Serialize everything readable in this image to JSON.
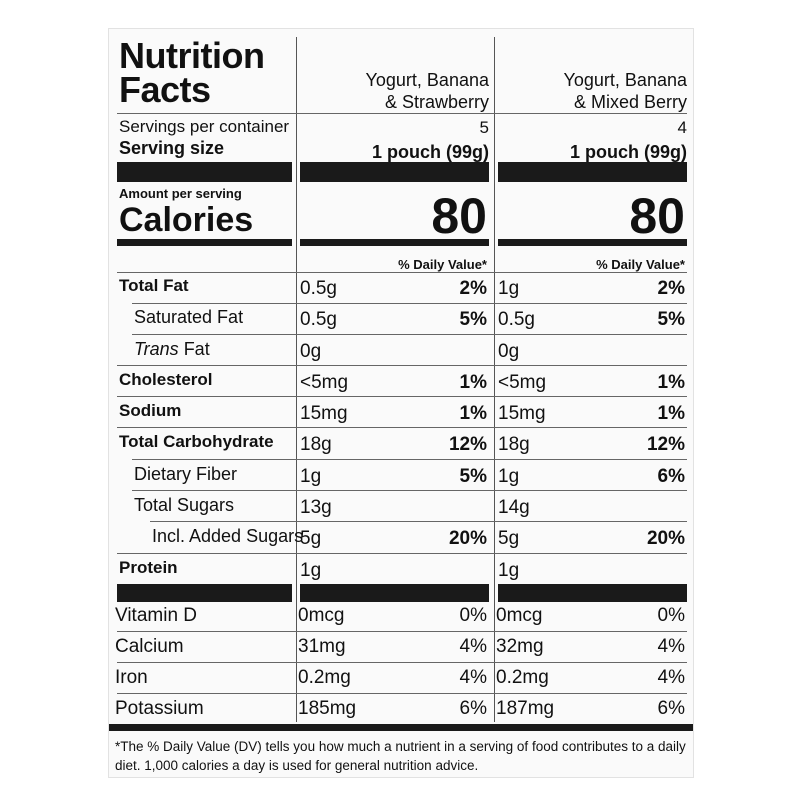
{
  "title_line1": "Nutrition",
  "title_line2": "Facts",
  "columns": [
    {
      "flavor_line1": "Yogurt, Banana",
      "flavor_line2": "& Strawberry",
      "servings": "5",
      "serving_size": "1 pouch (99g)",
      "calories": "80",
      "dv_header": "% Daily Value*",
      "rows": [
        {
          "amount": "0.5g",
          "dv": "2%"
        },
        {
          "amount": "0.5g",
          "dv": "5%"
        },
        {
          "amount": "0g",
          "dv": ""
        },
        {
          "amount": "<5mg",
          "dv": "1%"
        },
        {
          "amount": "15mg",
          "dv": "1%"
        },
        {
          "amount": "18g",
          "dv": "12%"
        },
        {
          "amount": "1g",
          "dv": "5%"
        },
        {
          "amount": "13g",
          "dv": ""
        },
        {
          "amount": "5g",
          "dv": "20%"
        },
        {
          "amount": "1g",
          "dv": ""
        }
      ],
      "vitamins": [
        {
          "amount": "0mcg",
          "dv": "0%"
        },
        {
          "amount": "31mg",
          "dv": "4%"
        },
        {
          "amount": "0.2mg",
          "dv": "4%"
        },
        {
          "amount": "185mg",
          "dv": "6%"
        }
      ]
    },
    {
      "flavor_line1": "Yogurt, Banana",
      "flavor_line2": "& Mixed Berry",
      "servings": "4",
      "serving_size": "1 pouch (99g)",
      "calories": "80",
      "dv_header": "% Daily Value*",
      "rows": [
        {
          "amount": "1g",
          "dv": "2%"
        },
        {
          "amount": "0.5g",
          "dv": "5%"
        },
        {
          "amount": "0g",
          "dv": ""
        },
        {
          "amount": "<5mg",
          "dv": "1%"
        },
        {
          "amount": "15mg",
          "dv": "1%"
        },
        {
          "amount": "18g",
          "dv": "12%"
        },
        {
          "amount": "1g",
          "dv": "6%"
        },
        {
          "amount": "14g",
          "dv": ""
        },
        {
          "amount": "5g",
          "dv": "20%"
        },
        {
          "amount": "1g",
          "dv": ""
        }
      ],
      "vitamins": [
        {
          "amount": "0mcg",
          "dv": "0%"
        },
        {
          "amount": "32mg",
          "dv": "4%"
        },
        {
          "amount": "0.2mg",
          "dv": "4%"
        },
        {
          "amount": "187mg",
          "dv": "6%"
        }
      ]
    }
  ],
  "servings_label": "Servings per container",
  "serving_size_label": "Serving size",
  "amount_per_serving": "Amount per serving",
  "calories_label": "Calories",
  "nutrients": [
    {
      "label": "Total Fat",
      "bold": true
    },
    {
      "label": "Saturated Fat",
      "bold": false
    },
    {
      "label": "Trans",
      "suffix": " Fat",
      "bold": false
    },
    {
      "label": "Cholesterol",
      "bold": true
    },
    {
      "label": "Sodium",
      "bold": true
    },
    {
      "label": "Total Carbohydrate",
      "bold": true
    },
    {
      "label": "Dietary Fiber",
      "bold": false
    },
    {
      "label": "Total Sugars",
      "bold": false
    },
    {
      "label": "Incl. Added Sugars",
      "bold": false
    },
    {
      "label": "Protein",
      "bold": true
    }
  ],
  "vitamin_labels": [
    "Vitamin D",
    "Calcium",
    "Iron",
    "Potassium"
  ],
  "footnote_line1": "*The % Daily Value (DV) tells you how much a nutrient in a serving of food contributes to a daily",
  "footnote_line2": "diet. 1,000 calories a day is used for general nutrition advice."
}
